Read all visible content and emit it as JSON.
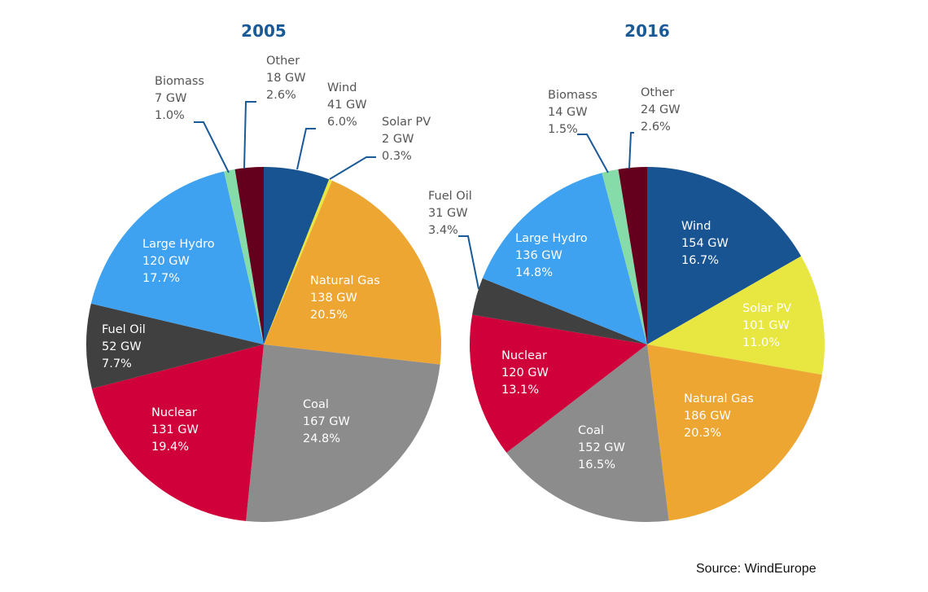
{
  "chart_data": [
    {
      "type": "pie",
      "title": "2005",
      "unit": "GW",
      "slices": [
        {
          "label": "Wind",
          "value": 41,
          "percent": "6.0%",
          "color": "#185492"
        },
        {
          "label": "Solar PV",
          "value": 2,
          "percent": "0.3%",
          "color": "#e8e640"
        },
        {
          "label": "Natural Gas",
          "value": 138,
          "percent": "20.5%",
          "color": "#eda632"
        },
        {
          "label": "Coal",
          "value": 167,
          "percent": "24.8%",
          "color": "#8c8c8c"
        },
        {
          "label": "Nuclear",
          "value": 131,
          "percent": "19.4%",
          "color": "#d0003a"
        },
        {
          "label": "Fuel Oil",
          "value": 52,
          "percent": "7.7%",
          "color": "#404040"
        },
        {
          "label": "Large Hydro",
          "value": 120,
          "percent": "17.7%",
          "color": "#3fa2f0"
        },
        {
          "label": "Biomass",
          "value": 7,
          "percent": "1.0%",
          "color": "#86dca8"
        },
        {
          "label": "Other",
          "value": 18,
          "percent": "2.6%",
          "color": "#64001e"
        }
      ]
    },
    {
      "type": "pie",
      "title": "2016",
      "unit": "GW",
      "slices": [
        {
          "label": "Wind",
          "value": 154,
          "percent": "16.7%",
          "color": "#185492"
        },
        {
          "label": "Solar PV",
          "value": 101,
          "percent": "11.0%",
          "color": "#e8e640"
        },
        {
          "label": "Natural Gas",
          "value": 186,
          "percent": "20.3%",
          "color": "#eda632"
        },
        {
          "label": "Coal",
          "value": 152,
          "percent": "16.5%",
          "color": "#8c8c8c"
        },
        {
          "label": "Nuclear",
          "value": 120,
          "percent": "13.1%",
          "color": "#d0003a"
        },
        {
          "label": "Fuel Oil",
          "value": 31,
          "percent": "3.4%",
          "color": "#404040"
        },
        {
          "label": "Large Hydro",
          "value": 136,
          "percent": "14.8%",
          "color": "#3fa2f0"
        },
        {
          "label": "Biomass",
          "value": 14,
          "percent": "1.5%",
          "color": "#86dca8"
        },
        {
          "label": "Other",
          "value": 24,
          "percent": "2.6%",
          "color": "#64001e"
        }
      ]
    }
  ],
  "gw_suffix": " GW",
  "source": "Source: WindEurope"
}
